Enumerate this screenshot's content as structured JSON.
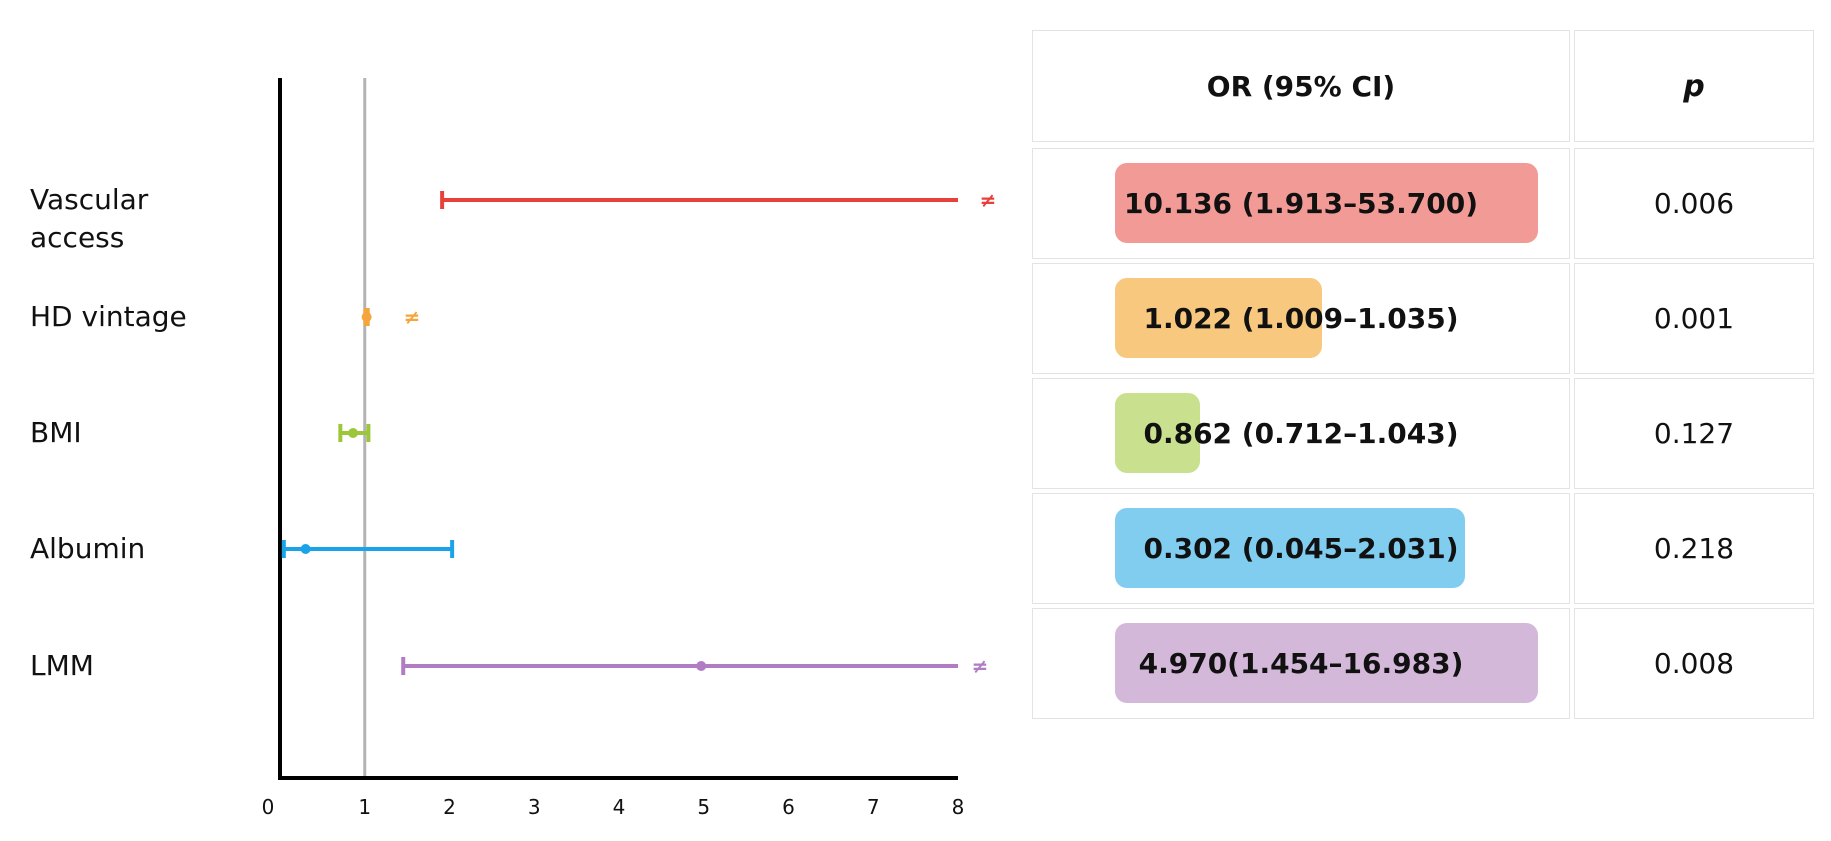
{
  "chart_data": {
    "type": "forest",
    "x_ticks": [
      "0",
      "1",
      "2",
      "3",
      "4",
      "5",
      "6",
      "7",
      "8"
    ],
    "xlim": [
      0,
      8
    ],
    "reference_line": 1,
    "truncation_marker": "≠",
    "rows": [
      {
        "label": "Vascular access",
        "label_lines": [
          "Vascular",
          "access"
        ],
        "or": 10.136,
        "ci_low": 1.913,
        "ci_high": 53.7,
        "truncated": true,
        "color": "#e8413c",
        "bar_color": "#f19a96",
        "or_text": "10.136 (1.913–53.700)",
        "p": "0.006"
      },
      {
        "label": "HD vintage",
        "label_lines": [
          "HD vintage"
        ],
        "or": 1.022,
        "ci_low": 1.009,
        "ci_high": 1.035,
        "truncated": true,
        "color": "#f5a53b",
        "bar_color": "#f7c87e",
        "or_text": "1.022 (1.009–1.035)",
        "p": "0.001"
      },
      {
        "label": "BMI",
        "label_lines": [
          "BMI"
        ],
        "or": 0.862,
        "ci_low": 0.712,
        "ci_high": 1.043,
        "truncated": false,
        "color": "#9dc73b",
        "bar_color": "#c9e08e",
        "or_text": "0.862 (0.712–1.043)",
        "p": "0.127"
      },
      {
        "label": "Albumin",
        "label_lines": [
          "Albumin"
        ],
        "or": 0.302,
        "ci_low": 0.045,
        "ci_high": 2.031,
        "truncated": false,
        "color": "#1aa3e8",
        "bar_color": "#80cdf0",
        "or_text": "0.302 (0.045–2.031)",
        "p": "0.218"
      },
      {
        "label": "LMM",
        "label_lines": [
          "LMM"
        ],
        "or": 4.97,
        "ci_low": 1.454,
        "ci_high": 16.983,
        "truncated": true,
        "color": "#b07cc4",
        "bar_color": "#d4b8da",
        "or_text": "4.970(1.454–16.983)",
        "p": "0.008"
      }
    ]
  },
  "table": {
    "or_header": "OR (95% CI)",
    "p_header": "p"
  },
  "colors": {
    "axis": "#000000",
    "reference_line": "#b3b3b3"
  }
}
